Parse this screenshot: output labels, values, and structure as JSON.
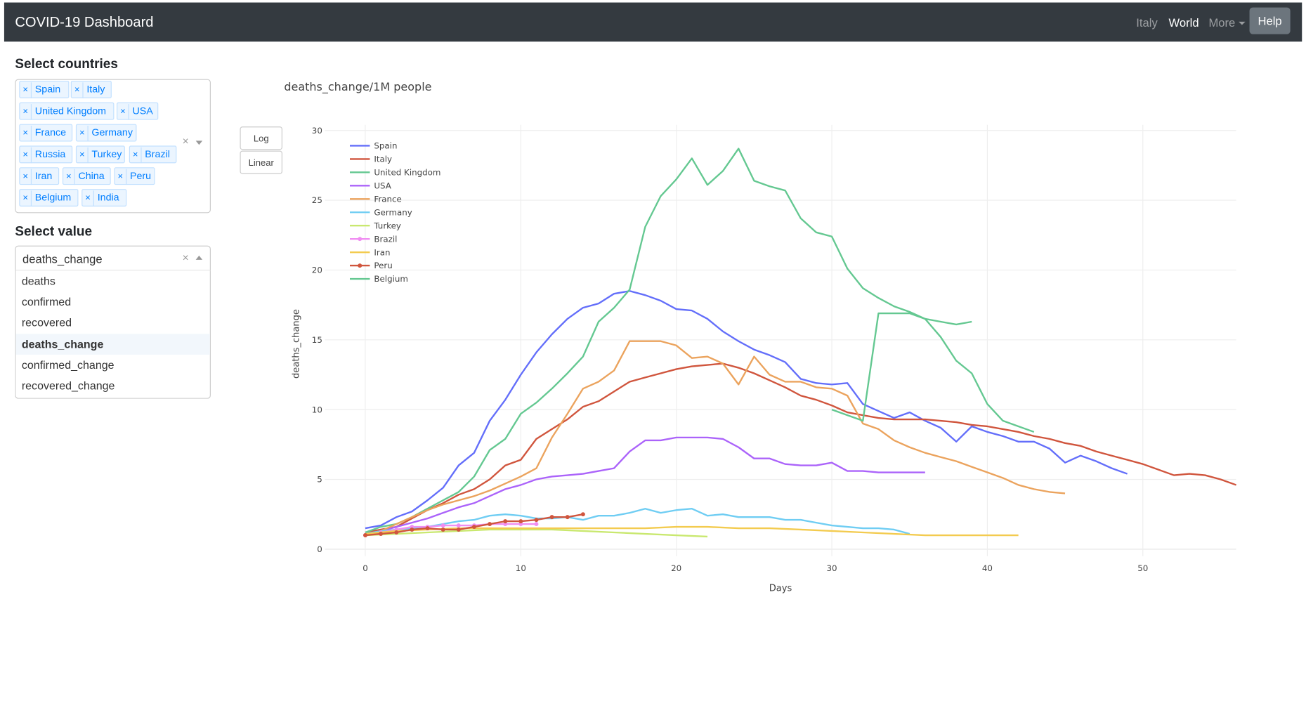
{
  "app": {
    "brand": "COVID-19 Dashboard",
    "nav": {
      "italy": "Italy",
      "world": "World",
      "more": "More",
      "help": "Help"
    }
  },
  "sidebar": {
    "countries_title": "Select countries",
    "countries": [
      "Spain",
      "Italy",
      "United Kingdom",
      "USA",
      "France",
      "Germany",
      "Russia",
      "Turkey",
      "Brazil",
      "Iran",
      "China",
      "Peru",
      "Belgium",
      "India"
    ],
    "clear_symbol": "×",
    "value_title": "Select value",
    "value_selected": "deaths_change",
    "value_options": [
      "deaths",
      "confirmed",
      "recovered",
      "deaths_change",
      "confirmed_change",
      "recovered_change"
    ]
  },
  "scale_buttons": {
    "log": "Log",
    "linear": "Linear"
  },
  "colors": {
    "Spain": "#636efa",
    "Italy": "#d0553d",
    "United Kingdom": "#64c891",
    "USA": "#ab63fa",
    "France": "#eba35d",
    "Germany": "#6fcdf3",
    "Turkey": "#c9e86f",
    "Brazil": "#f08ef2",
    "Iran": "#f3cb4f",
    "Peru": "#d0553d",
    "Belgium": "#64c891"
  },
  "chart_data": {
    "type": "line",
    "title": "deaths_change/1M people",
    "xlabel": "Days",
    "ylabel": "deaths_change",
    "xlim": [
      -2.6,
      56
    ],
    "ylim": [
      -0.5,
      30.4
    ],
    "xticks": [
      0,
      10,
      20,
      30,
      40,
      50
    ],
    "yticks": [
      0,
      5,
      10,
      15,
      20,
      25,
      30
    ],
    "legend_position": "top-left",
    "grid": true,
    "series": [
      {
        "name": "Spain",
        "markers": false,
        "x": [
          0,
          1,
          2,
          3,
          4,
          5,
          6,
          7,
          8,
          9,
          10,
          11,
          12,
          13,
          14,
          15,
          16,
          17,
          18,
          19,
          20,
          21,
          22,
          23,
          24,
          25,
          26,
          27,
          28,
          29,
          30,
          31,
          32,
          33,
          34,
          35,
          36,
          37,
          38,
          39,
          40,
          41,
          42,
          43,
          44,
          45,
          46,
          47,
          48,
          49
        ],
        "y": [
          1.5,
          1.7,
          2.3,
          2.7,
          3.5,
          4.4,
          6.0,
          6.9,
          9.2,
          10.7,
          12.5,
          14.1,
          15.4,
          16.5,
          17.3,
          17.6,
          18.3,
          18.5,
          18.2,
          17.8,
          17.2,
          17.1,
          16.5,
          15.6,
          14.9,
          14.3,
          13.9,
          13.4,
          12.2,
          11.9,
          11.8,
          11.9,
          10.4,
          9.9,
          9.4,
          9.8,
          9.2,
          8.7,
          7.7,
          8.8,
          8.4,
          8.1,
          7.7,
          7.7,
          7.2,
          6.2,
          6.7,
          6.3,
          5.8,
          5.4
        ]
      },
      {
        "name": "Italy",
        "markers": false,
        "x": [
          0,
          1,
          2,
          3,
          4,
          5,
          6,
          7,
          8,
          9,
          10,
          11,
          12,
          13,
          14,
          15,
          16,
          17,
          18,
          19,
          20,
          21,
          22,
          23,
          24,
          25,
          26,
          27,
          28,
          29,
          30,
          31,
          32,
          33,
          34,
          35,
          36,
          37,
          38,
          39,
          40,
          41,
          42,
          43,
          44,
          45,
          46,
          47,
          48,
          49,
          50,
          51,
          52,
          53,
          54,
          55,
          56
        ],
        "y": [
          1.2,
          1.4,
          1.6,
          2.2,
          2.8,
          3.3,
          3.9,
          4.3,
          5.0,
          6.0,
          6.4,
          7.9,
          8.6,
          9.3,
          10.2,
          10.6,
          11.3,
          12.0,
          12.3,
          12.6,
          12.9,
          13.1,
          13.2,
          13.3,
          13.0,
          12.6,
          12.1,
          11.6,
          11.0,
          10.7,
          10.3,
          9.8,
          9.6,
          9.4,
          9.3,
          9.3,
          9.3,
          9.2,
          9.1,
          8.9,
          8.8,
          8.6,
          8.4,
          8.1,
          7.9,
          7.6,
          7.4,
          7.0,
          6.7,
          6.4,
          6.1,
          5.7,
          5.3,
          5.4,
          5.3,
          5.0,
          4.6
        ]
      },
      {
        "name": "United Kingdom",
        "markers": false,
        "x": [
          0,
          1,
          2,
          3,
          4,
          5,
          6,
          7,
          8,
          9,
          10,
          11,
          12,
          13,
          14,
          15,
          16,
          17,
          18,
          19,
          20,
          21,
          22,
          23,
          24,
          25,
          26,
          27,
          28,
          29,
          30,
          31,
          32,
          33,
          34,
          35,
          36,
          37,
          38,
          39,
          40,
          41,
          42,
          43
        ],
        "y": [
          1.2,
          1.6,
          1.8,
          2.3,
          2.9,
          3.5,
          4.1,
          5.2,
          7.1,
          7.9,
          9.7,
          10.5,
          11.5,
          12.6,
          13.8,
          16.3,
          17.3,
          18.6,
          23.1,
          25.3,
          26.5,
          28.0,
          26.1,
          27.1,
          28.7,
          26.4,
          26.0,
          25.7,
          23.7,
          22.7,
          22.4,
          20.1,
          18.7,
          18.0,
          17.4,
          17.0,
          16.5,
          15.2,
          13.5,
          12.6,
          10.4,
          9.2,
          8.8,
          8.4
        ]
      },
      {
        "name": "USA",
        "markers": false,
        "x": [
          0,
          1,
          2,
          3,
          4,
          5,
          6,
          7,
          8,
          9,
          10,
          11,
          12,
          13,
          14,
          15,
          16,
          17,
          18,
          19,
          20,
          21,
          22,
          23,
          24,
          25,
          26,
          27,
          28,
          29,
          30,
          31,
          32,
          33,
          34,
          35,
          36
        ],
        "y": [
          1.1,
          1.3,
          1.6,
          1.9,
          2.2,
          2.6,
          3.0,
          3.3,
          3.8,
          4.3,
          4.6,
          5.0,
          5.2,
          5.3,
          5.4,
          5.6,
          5.8,
          7.0,
          7.8,
          7.8,
          8.0,
          8.0,
          8.0,
          7.9,
          7.3,
          6.5,
          6.5,
          6.1,
          6.0,
          6.0,
          6.2,
          5.6,
          5.6,
          5.5,
          5.5,
          5.5,
          5.5
        ]
      },
      {
        "name": "France",
        "markers": false,
        "x": [
          0,
          1,
          2,
          3,
          4,
          5,
          6,
          7,
          8,
          9,
          10,
          11,
          12,
          13,
          14,
          15,
          16,
          17,
          18,
          19,
          20,
          21,
          22,
          23,
          24,
          25,
          26,
          27,
          28,
          29,
          30,
          31,
          32,
          33,
          34,
          35,
          36,
          37,
          38,
          39,
          40,
          41,
          42,
          43,
          44,
          45
        ],
        "y": [
          1.0,
          1.3,
          1.8,
          2.3,
          2.8,
          3.2,
          3.5,
          3.8,
          4.2,
          4.7,
          5.2,
          5.8,
          8.0,
          9.7,
          11.5,
          12.0,
          12.8,
          14.9,
          14.9,
          14.9,
          14.6,
          13.7,
          13.8,
          13.3,
          11.8,
          13.8,
          12.5,
          12.0,
          12.0,
          11.6,
          11.5,
          11.0,
          9.0,
          8.6,
          7.8,
          7.3,
          6.9,
          6.6,
          6.3,
          5.9,
          5.5,
          5.1,
          4.6,
          4.3,
          4.1,
          4.0
        ]
      },
      {
        "name": "Germany",
        "markers": false,
        "x": [
          0,
          1,
          2,
          3,
          4,
          5,
          6,
          7,
          8,
          9,
          10,
          11,
          12,
          13,
          14,
          15,
          16,
          17,
          18,
          19,
          20,
          21,
          22,
          23,
          24,
          25,
          26,
          27,
          28,
          29,
          30,
          31,
          32,
          33,
          34,
          35
        ],
        "y": [
          1.1,
          1.3,
          1.4,
          1.5,
          1.6,
          1.8,
          2.0,
          2.1,
          2.4,
          2.5,
          2.4,
          2.2,
          2.2,
          2.3,
          2.1,
          2.4,
          2.4,
          2.6,
          2.9,
          2.6,
          2.8,
          2.9,
          2.4,
          2.5,
          2.3,
          2.3,
          2.3,
          2.1,
          2.1,
          1.9,
          1.7,
          1.6,
          1.5,
          1.5,
          1.4,
          1.1
        ]
      },
      {
        "name": "Turkey",
        "markers": false,
        "x": [
          0,
          2,
          4,
          6,
          8,
          10,
          12,
          14,
          16,
          18,
          20,
          22
        ],
        "y": [
          1.0,
          1.1,
          1.2,
          1.3,
          1.4,
          1.4,
          1.4,
          1.3,
          1.2,
          1.1,
          1.0,
          0.9
        ]
      },
      {
        "name": "Brazil",
        "markers": true,
        "x": [
          0,
          1,
          2,
          3,
          4,
          5,
          6,
          7,
          8,
          9,
          10,
          11
        ],
        "y": [
          1.0,
          1.2,
          1.4,
          1.6,
          1.6,
          1.7,
          1.7,
          1.7,
          1.8,
          1.8,
          1.8,
          1.8
        ]
      },
      {
        "name": "Iran",
        "markers": false,
        "x": [
          0,
          2,
          4,
          6,
          8,
          10,
          12,
          14,
          16,
          18,
          20,
          22,
          24,
          26,
          28,
          30,
          32,
          34,
          36,
          38,
          40,
          42
        ],
        "y": [
          1.1,
          1.3,
          1.4,
          1.5,
          1.5,
          1.5,
          1.5,
          1.5,
          1.5,
          1.5,
          1.6,
          1.6,
          1.5,
          1.5,
          1.4,
          1.3,
          1.2,
          1.1,
          1.0,
          1.0,
          1.0,
          1.0
        ]
      },
      {
        "name": "Peru",
        "markers": true,
        "x": [
          0,
          1,
          2,
          3,
          4,
          5,
          6,
          7,
          8,
          9,
          10,
          11,
          12,
          13,
          14
        ],
        "y": [
          1.0,
          1.1,
          1.2,
          1.4,
          1.5,
          1.4,
          1.4,
          1.6,
          1.8,
          2.0,
          2.0,
          2.1,
          2.3,
          2.3,
          2.5
        ]
      },
      {
        "name": "Belgium",
        "markers": false,
        "x": [
          30,
          31,
          32,
          33,
          34,
          35,
          36,
          37,
          38,
          39
        ],
        "y": [
          10.0,
          9.6,
          9.2,
          16.9,
          16.9,
          16.9,
          16.5,
          16.3,
          16.1,
          16.3
        ]
      }
    ]
  }
}
